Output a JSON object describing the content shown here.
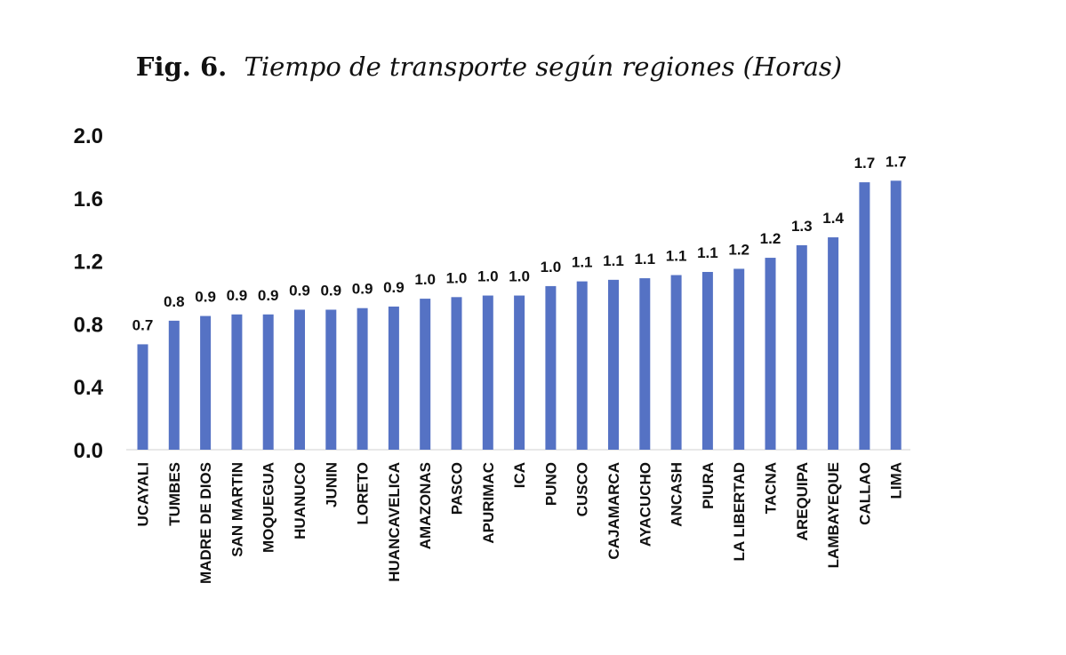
{
  "caption": {
    "label": "Fig. 6.",
    "title": "Tiempo de transporte según regiones (Horas)"
  },
  "chart_data": {
    "type": "bar",
    "title": "Tiempo de transporte según regiones (Horas)",
    "xlabel": "",
    "ylabel": "",
    "ylim": [
      0,
      2.0
    ],
    "yticks": [
      0.0,
      0.4,
      0.8,
      1.2,
      1.6,
      2.0
    ],
    "ytick_labels": [
      "0.0",
      "0.4",
      "0.8",
      "1.2",
      "1.6",
      "2.0"
    ],
    "grid": false,
    "bar_color": "#5572C4",
    "categories": [
      "UCAYALI",
      "TUMBES",
      "MADRE DE DIOS",
      "SAN MARTIN",
      "MOQUEGUA",
      "HUANUCO",
      "JUNIN",
      "LORETO",
      "HUANCAVELICA",
      "AMAZONAS",
      "PASCO",
      "APURIMAC",
      "ICA",
      "PUNO",
      "CUSCO",
      "CAJAMARCA",
      "AYACUCHO",
      "ANCASH",
      "PIURA",
      "LA LIBERTAD",
      "TACNA",
      "AREQUIPA",
      "LAMBAYEQUE",
      "CALLAO",
      "LIMA"
    ],
    "values": [
      0.67,
      0.82,
      0.85,
      0.86,
      0.86,
      0.89,
      0.89,
      0.9,
      0.91,
      0.96,
      0.97,
      0.98,
      0.98,
      1.04,
      1.07,
      1.08,
      1.09,
      1.11,
      1.13,
      1.15,
      1.22,
      1.3,
      1.35,
      1.7,
      1.71
    ],
    "labels": [
      "0.7",
      "0.8",
      "0.9",
      "0.9",
      "0.9",
      "0.9",
      "0.9",
      "0.9",
      "0.9",
      "1.0",
      "1.0",
      "1.0",
      "1.0",
      "1.0",
      "1.1",
      "1.1",
      "1.1",
      "1.1",
      "1.1",
      "1.2",
      "1.2",
      "1.3",
      "1.4",
      "1.7",
      "1.7"
    ]
  }
}
